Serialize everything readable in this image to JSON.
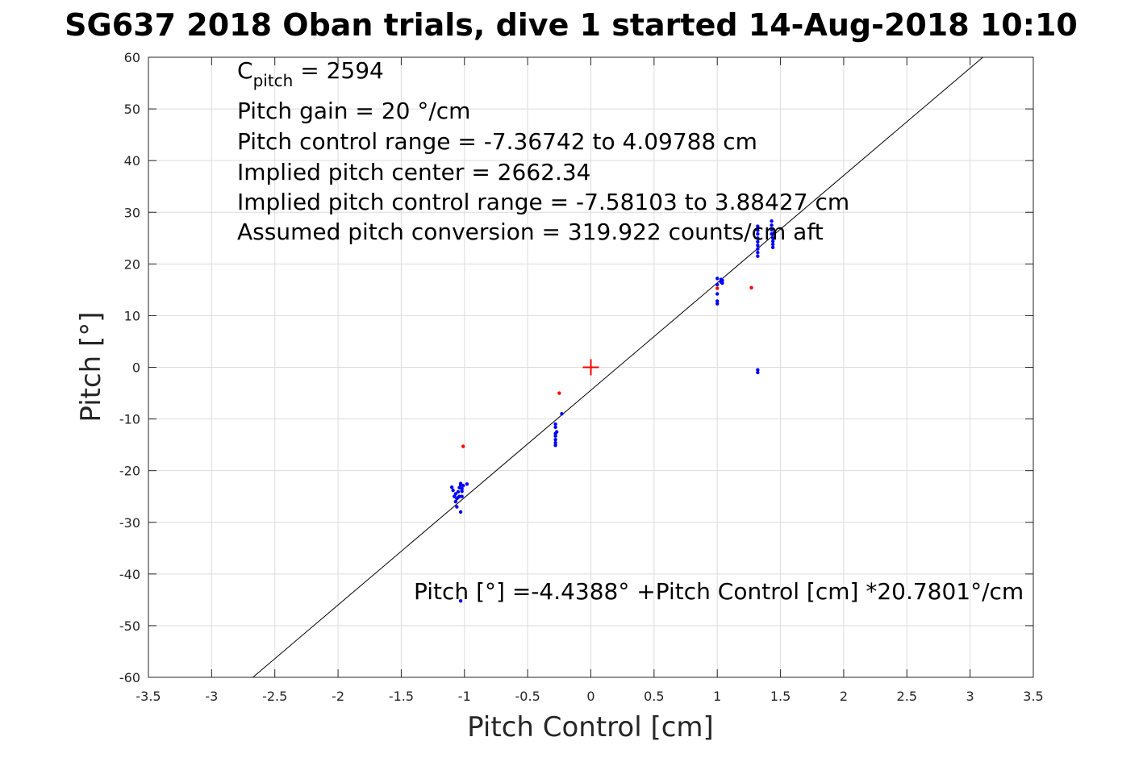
{
  "chart_data": {
    "type": "scatter",
    "title": "SG637 2018 Oban trials, dive 1 started 14-Aug-2018 10:10",
    "xlabel": "Pitch Control [cm]",
    "ylabel": "Pitch [°]",
    "xlim": [
      -3.5,
      3.5
    ],
    "ylim": [
      -60,
      60
    ],
    "xticks": [
      -3.5,
      -3,
      -2.5,
      -2,
      -1.5,
      -1,
      -0.5,
      0,
      0.5,
      1,
      1.5,
      2,
      2.5,
      3,
      3.5
    ],
    "yticks": [
      -60,
      -50,
      -40,
      -30,
      -20,
      -10,
      0,
      10,
      20,
      30,
      40,
      50,
      60
    ],
    "xtick_labels": [
      "-3.5",
      "-3",
      "-2.5",
      "-2",
      "-1.5",
      "-1",
      "-0.5",
      "0",
      "0.5",
      "1",
      "1.5",
      "2",
      "2.5",
      "3",
      "3.5"
    ],
    "ytick_labels": [
      "-60",
      "-50",
      "-40",
      "-30",
      "-20",
      "-10",
      "0",
      "10",
      "20",
      "30",
      "40",
      "50",
      "60"
    ],
    "grid": true,
    "colors": {
      "blue": "#0000ff",
      "red": "#ff0000",
      "fit": "#000000",
      "grid": "#dcdcdc",
      "axis": "#262626"
    },
    "series": [
      {
        "marker": "dot",
        "color": "#0000ff",
        "points": [
          [
            -1.1,
            -23.2
          ],
          [
            -1.09,
            -23.8
          ],
          [
            -1.08,
            -25.0
          ],
          [
            -1.07,
            -24.5
          ],
          [
            -1.07,
            -26.0
          ],
          [
            -1.06,
            -27.0
          ],
          [
            -1.06,
            -25.4
          ],
          [
            -1.05,
            -24.1
          ],
          [
            -1.05,
            -25.2
          ],
          [
            -1.04,
            -25.0
          ],
          [
            -1.04,
            -23.3
          ],
          [
            -1.03,
            -22.8
          ],
          [
            -1.03,
            -28.0
          ],
          [
            -1.03,
            -22.5
          ],
          [
            -1.02,
            -25.0
          ],
          [
            -1.02,
            -24.0
          ],
          [
            -1.02,
            -23.5
          ],
          [
            -1.01,
            -22.9
          ],
          [
            -0.98,
            -22.6
          ],
          [
            -1.03,
            -45.2
          ],
          [
            -0.28,
            -11.0
          ],
          [
            -0.28,
            -11.6
          ],
          [
            -0.28,
            -12.8
          ],
          [
            -0.28,
            -13.3
          ],
          [
            -0.28,
            -14.0
          ],
          [
            -0.28,
            -14.6
          ],
          [
            -0.28,
            -15.1
          ],
          [
            -0.27,
            -12.5
          ],
          [
            -0.23,
            -9.0
          ],
          [
            1.0,
            17.2
          ],
          [
            1.0,
            16.0
          ],
          [
            1.0,
            14.2
          ],
          [
            1.0,
            12.8
          ],
          [
            1.0,
            12.3
          ],
          [
            1.03,
            17.0
          ],
          [
            1.03,
            16.5
          ],
          [
            1.04,
            16.8
          ],
          [
            1.04,
            16.3
          ],
          [
            1.32,
            27.3
          ],
          [
            1.32,
            26.5
          ],
          [
            1.32,
            25.8
          ],
          [
            1.32,
            25.0
          ],
          [
            1.32,
            24.3
          ],
          [
            1.32,
            23.6
          ],
          [
            1.32,
            22.9
          ],
          [
            1.32,
            22.2
          ],
          [
            1.32,
            21.5
          ],
          [
            1.32,
            -0.5
          ],
          [
            1.32,
            -1.0
          ],
          [
            1.43,
            28.3
          ],
          [
            1.43,
            27.5
          ],
          [
            1.43,
            26.6
          ],
          [
            1.43,
            25.8
          ],
          [
            1.44,
            25.0
          ],
          [
            1.44,
            24.4
          ],
          [
            1.44,
            23.8
          ],
          [
            1.44,
            23.2
          ],
          [
            1.45,
            26.0
          ]
        ]
      },
      {
        "marker": "dot",
        "color": "#ff0000",
        "points": [
          [
            -1.01,
            -15.3
          ],
          [
            -0.25,
            -5.0
          ],
          [
            1.0,
            15.3
          ],
          [
            1.27,
            15.4
          ]
        ]
      },
      {
        "marker": "plus",
        "color": "#ff0000",
        "points": [
          [
            0,
            0
          ]
        ]
      }
    ],
    "fit_line": {
      "intercept": -4.4388,
      "slope": 20.7801,
      "color": "#000000"
    },
    "annotations": {
      "c_pitch_prefix": "C",
      "c_pitch_sub": "pitch",
      "c_pitch_value": " = 2594",
      "pitch_gain": "Pitch gain = 20 °/cm",
      "pitch_control_range": "Pitch control range = -7.36742 to 4.09788 cm",
      "implied_pitch_center": "Implied pitch center = 2662.34",
      "implied_pitch_control_range": "Implied pitch control range = -7.58103 to 3.88427 cm",
      "assumed_pitch_conversion": "Assumed pitch conversion = 319.922 counts/cm aft",
      "fit_equation": "Pitch [°] =-4.4388° +Pitch Control [cm] *20.7801°/cm"
    }
  }
}
